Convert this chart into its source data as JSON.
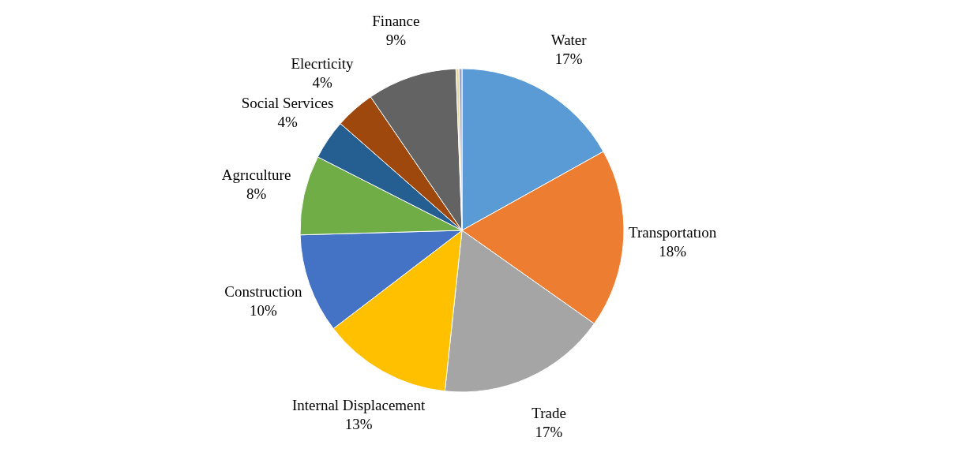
{
  "chart_data": {
    "type": "pie",
    "categories": [
      "Water",
      "Transportatıon",
      "Trade",
      "Internal Displacement",
      "Construction",
      "Agrıculture",
      "Social Services",
      "Elecrticity",
      "Finance",
      null,
      null
    ],
    "values": [
      17,
      18,
      17,
      13,
      10,
      8,
      4,
      4,
      9,
      0.3,
      0.3
    ],
    "value_labels": [
      "17%",
      "18%",
      "17%",
      "13%",
      "10%",
      "8%",
      "4%",
      "4%",
      "9%",
      null,
      null
    ],
    "colors": [
      "#5b9bd5",
      "#ed7d31",
      "#a5a5a5",
      "#ffc000",
      "#4472c4",
      "#70ad47",
      "#255e91",
      "#9e480e",
      "#636363",
      "#e6d8a0",
      "#9aa3c8"
    ],
    "legend": false
  }
}
